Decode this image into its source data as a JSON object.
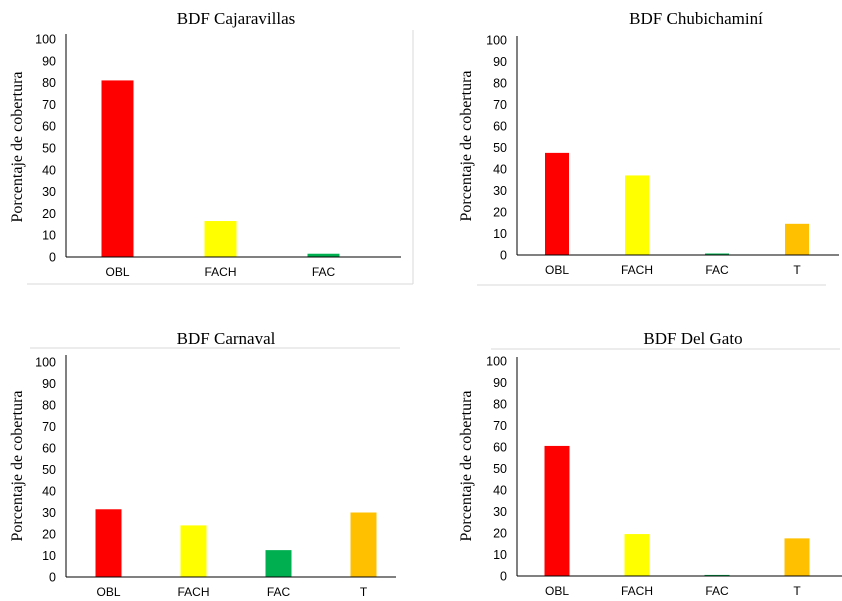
{
  "colors": {
    "OBL": "#ff0000",
    "FACH": "#ffff00",
    "FAC": "#00b050",
    "T": "#ffc000",
    "axis": "#000000",
    "frame": "#d9d9d9"
  },
  "chart_data": [
    {
      "type": "bar",
      "title": "BDF Cajaravillas",
      "ylabel": "Porcentaje de cobertura",
      "xlabel": "",
      "ylim": [
        0,
        100
      ],
      "yticks": [
        "0",
        "10",
        "20",
        "30",
        "40",
        "50",
        "60",
        "70",
        "80",
        "90",
        "100"
      ],
      "categories": [
        "OBL",
        "FACH",
        "FAC"
      ],
      "values": [
        81,
        16.5,
        1.5
      ],
      "grid": false
    },
    {
      "type": "bar",
      "title": "BDF Chubichaminí",
      "ylabel": "Porcentaje de cobertura",
      "xlabel": "",
      "ylim": [
        0,
        100
      ],
      "yticks": [
        "0",
        "10",
        "20",
        "30",
        "40",
        "50",
        "60",
        "70",
        "80",
        "90",
        "100"
      ],
      "categories": [
        "OBL",
        "FACH",
        "FAC",
        "T"
      ],
      "values": [
        47.5,
        37,
        0.7,
        14.5
      ],
      "grid": false
    },
    {
      "type": "bar",
      "title": "BDF Carnaval",
      "ylabel": "Porcentaje de cobertura",
      "xlabel": "",
      "ylim": [
        0,
        100
      ],
      "yticks": [
        "0",
        "10",
        "20",
        "30",
        "40",
        "50",
        "60",
        "70",
        "80",
        "90",
        "100"
      ],
      "categories": [
        "OBL",
        "FACH",
        "FAC",
        "T"
      ],
      "values": [
        31.5,
        24,
        12.5,
        30
      ],
      "grid": false
    },
    {
      "type": "bar",
      "title": "BDF Del Gato",
      "ylabel": "Porcentaje de cobertura",
      "xlabel": "",
      "ylim": [
        0,
        100
      ],
      "yticks": [
        "0",
        "10",
        "20",
        "30",
        "40",
        "50",
        "60",
        "70",
        "80",
        "90",
        "100"
      ],
      "categories": [
        "OBL",
        "FACH",
        "FAC",
        "T"
      ],
      "values": [
        60.5,
        19.5,
        0.5,
        17.5
      ],
      "grid": false
    }
  ]
}
